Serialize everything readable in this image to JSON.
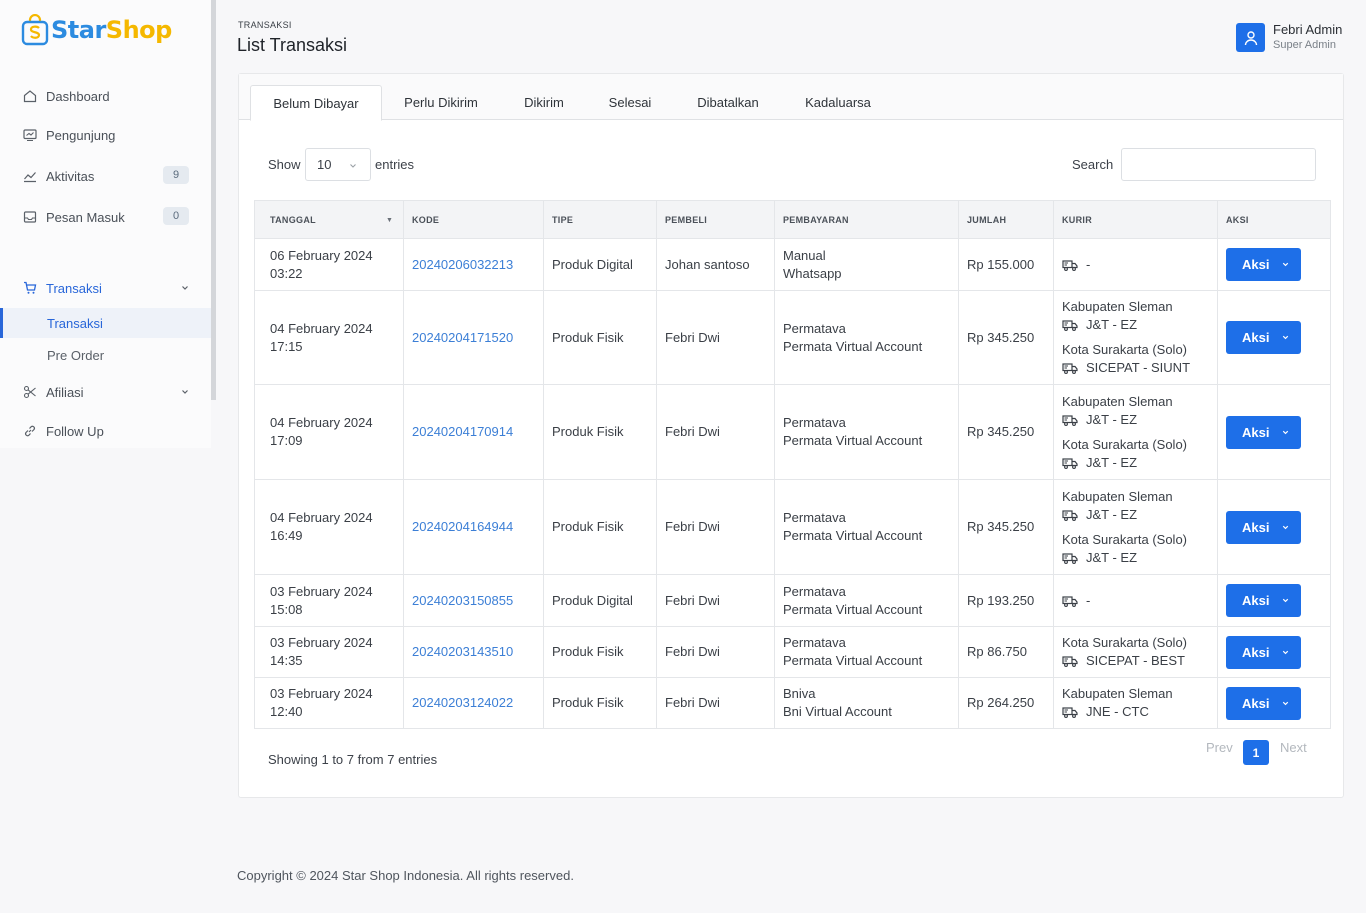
{
  "brand": {
    "star": "Star",
    "shop": "Shop"
  },
  "colors": {
    "accent": "#1e6fe8",
    "link": "#3c7fd6",
    "brand_blue": "#2c8be0",
    "brand_yellow": "#f5b800"
  },
  "sidebar": {
    "items": [
      {
        "label": "Dashboard",
        "icon": "home-icon"
      },
      {
        "label": "Pengunjung",
        "icon": "monitor-icon"
      },
      {
        "label": "Aktivitas",
        "icon": "activity-icon",
        "badge": "9"
      },
      {
        "label": "Pesan Masuk",
        "icon": "inbox-icon",
        "badge": "0"
      },
      {
        "label": "Transaksi",
        "icon": "cart-icon",
        "expanded": true,
        "children": [
          {
            "label": "Transaksi",
            "active": true
          },
          {
            "label": "Pre Order"
          }
        ]
      },
      {
        "label": "Afiliasi",
        "icon": "scissors-icon"
      },
      {
        "label": "Follow Up",
        "icon": "link-icon"
      }
    ]
  },
  "header": {
    "breadcrumb": "TRANSAKSI",
    "title": "List Transaksi"
  },
  "user": {
    "name": "Febri Admin",
    "role": "Super Admin"
  },
  "tabs": [
    "Belum Dibayar",
    "Perlu Dikirim",
    "Dikirim",
    "Selesai",
    "Dibatalkan",
    "Kadaluarsa"
  ],
  "active_tab": "Belum Dibayar",
  "controls": {
    "show": "Show",
    "length": "10",
    "entries": "entries",
    "search": "Search"
  },
  "table": {
    "columns": [
      "TANGGAL",
      "KODE",
      "TIPE",
      "PEMBELI",
      "PEMBAYARAN",
      "JUMLAH",
      "KURIR",
      "AKSI"
    ],
    "rows": [
      {
        "date": "06 February 2024",
        "time": "03:22",
        "code": "20240206032213",
        "type": "Produk Digital",
        "buyer": "Johan santoso",
        "pay1": "Manual",
        "pay2": "Whatsapp",
        "amount": "Rp 155.000",
        "kurir": [
          {
            "service": "-"
          }
        ]
      },
      {
        "date": "04 February 2024",
        "time": "17:15",
        "code": "20240204171520",
        "type": "Produk Fisik",
        "buyer": "Febri Dwi",
        "pay1": "Permatava",
        "pay2": "Permata Virtual Account",
        "amount": "Rp 345.250",
        "kurir": [
          {
            "region": "Kabupaten Sleman",
            "service": "J&T - EZ"
          },
          {
            "region": "Kota Surakarta (Solo)",
            "service": "SICEPAT - SIUNT"
          }
        ]
      },
      {
        "date": "04 February 2024",
        "time": "17:09",
        "code": "20240204170914",
        "type": "Produk Fisik",
        "buyer": "Febri Dwi",
        "pay1": "Permatava",
        "pay2": "Permata Virtual Account",
        "amount": "Rp 345.250",
        "kurir": [
          {
            "region": "Kabupaten Sleman",
            "service": "J&T - EZ"
          },
          {
            "region": "Kota Surakarta (Solo)",
            "service": "J&T - EZ"
          }
        ]
      },
      {
        "date": "04 February 2024",
        "time": "16:49",
        "code": "20240204164944",
        "type": "Produk Fisik",
        "buyer": "Febri Dwi",
        "pay1": "Permatava",
        "pay2": "Permata Virtual Account",
        "amount": "Rp 345.250",
        "kurir": [
          {
            "region": "Kabupaten Sleman",
            "service": "J&T - EZ"
          },
          {
            "region": "Kota Surakarta (Solo)",
            "service": "J&T - EZ"
          }
        ]
      },
      {
        "date": "03 February 2024",
        "time": "15:08",
        "code": "20240203150855",
        "type": "Produk Digital",
        "buyer": "Febri Dwi",
        "pay1": "Permatava",
        "pay2": "Permata Virtual Account",
        "amount": "Rp 193.250",
        "kurir": [
          {
            "service": "-"
          }
        ]
      },
      {
        "date": "03 February 2024",
        "time": "14:35",
        "code": "20240203143510",
        "type": "Produk Fisik",
        "buyer": "Febri Dwi",
        "pay1": "Permatava",
        "pay2": "Permata Virtual Account",
        "amount": "Rp 86.750",
        "kurir": [
          {
            "region": "Kota Surakarta (Solo)",
            "service": "SICEPAT - BEST"
          }
        ]
      },
      {
        "date": "03 February 2024",
        "time": "12:40",
        "code": "20240203124022",
        "type": "Produk Fisik",
        "buyer": "Febri Dwi",
        "pay1": "Bniva",
        "pay2": "Bni Virtual Account",
        "amount": "Rp 264.250",
        "kurir": [
          {
            "region": "Kabupaten Sleman",
            "service": "JNE - CTC"
          }
        ]
      }
    ],
    "action_label": "Aksi"
  },
  "pagination": {
    "summary": "Showing 1 to 7 from 7 entries",
    "prev": "Prev",
    "current": "1",
    "next": "Next"
  },
  "footer": "Copyright © 2024 Star Shop Indonesia. All rights reserved."
}
